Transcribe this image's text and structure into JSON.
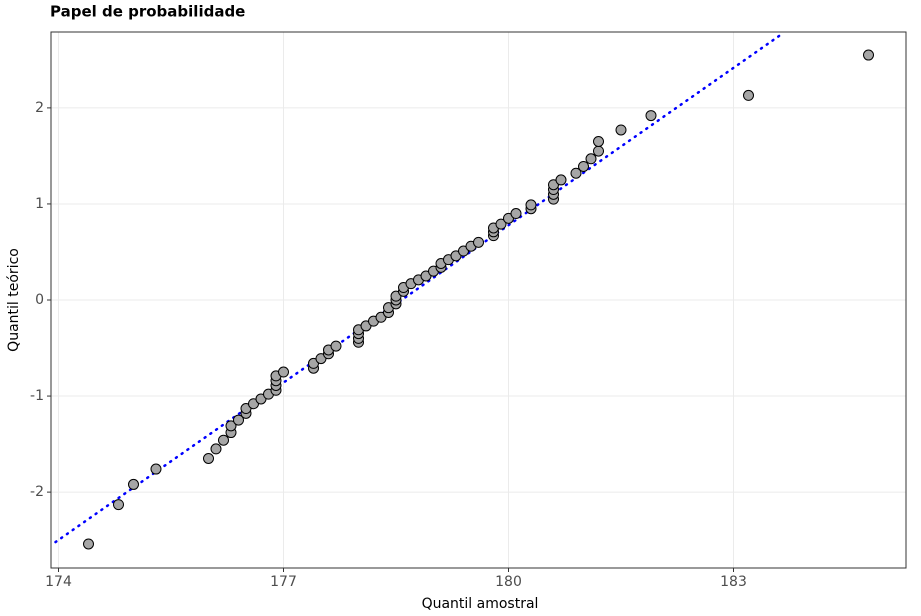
{
  "chart_data": {
    "type": "scatter",
    "title": "Papel de probabilidade",
    "x_label": "Quantil amostral",
    "y_label": "Quantil teórico",
    "xlim": [
      173.9,
      185.3
    ],
    "ylim": [
      -2.79,
      2.79
    ],
    "xticks": [
      174,
      177,
      180,
      183
    ],
    "yticks": [
      -2,
      -1,
      0,
      1,
      2
    ],
    "grid": true,
    "point_color": "#a6a6a6",
    "x": [
      174.4,
      174.8,
      175.0,
      175.3,
      176.0,
      176.1,
      176.2,
      176.3,
      176.3,
      176.4,
      176.5,
      176.5,
      176.6,
      176.7,
      176.8,
      176.9,
      176.9,
      176.9,
      176.9,
      177.0,
      177.4,
      177.4,
      177.5,
      177.6,
      177.6,
      177.7,
      178.0,
      178.0,
      178.0,
      178.0,
      178.1,
      178.2,
      178.3,
      178.4,
      178.4,
      178.5,
      178.5,
      178.5,
      178.6,
      178.6,
      178.7,
      178.8,
      178.9,
      179.0,
      179.1,
      179.1,
      179.2,
      179.3,
      179.4,
      179.5,
      179.6,
      179.8,
      179.8,
      179.8,
      179.9,
      180.0,
      180.1,
      180.3,
      180.3,
      180.6,
      180.6,
      180.6,
      180.6,
      180.7,
      180.9,
      181.0,
      181.1,
      181.2,
      181.2,
      181.5,
      181.9,
      183.2,
      184.8
    ],
    "values": [
      -2.54,
      -2.13,
      -1.92,
      -1.76,
      -1.65,
      -1.55,
      -1.46,
      -1.38,
      -1.31,
      -1.25,
      -1.18,
      -1.13,
      -1.08,
      -1.03,
      -0.98,
      -0.94,
      -0.89,
      -0.84,
      -0.79,
      -0.75,
      -0.71,
      -0.66,
      -0.61,
      -0.56,
      -0.52,
      -0.48,
      -0.44,
      -0.4,
      -0.35,
      -0.31,
      -0.27,
      -0.22,
      -0.18,
      -0.13,
      -0.08,
      -0.04,
      0.0,
      0.04,
      0.09,
      0.13,
      0.17,
      0.21,
      0.25,
      0.3,
      0.34,
      0.38,
      0.42,
      0.46,
      0.51,
      0.56,
      0.6,
      0.67,
      0.71,
      0.75,
      0.79,
      0.85,
      0.9,
      0.95,
      0.99,
      1.05,
      1.1,
      1.15,
      1.2,
      1.25,
      1.32,
      1.39,
      1.47,
      1.55,
      1.65,
      1.77,
      1.92,
      2.13,
      2.55
    ],
    "reference_line": {
      "x": [
        173.96,
        183.61
      ],
      "y": [
        -2.52,
        2.75
      ],
      "color": "#0000ff"
    }
  }
}
